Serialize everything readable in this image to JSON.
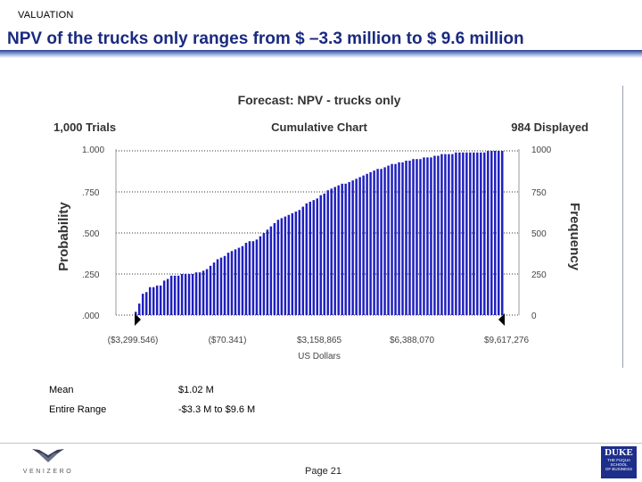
{
  "header": {
    "section_label": "VALUATION",
    "title": "NPV of the trucks only ranges from $ –3.3 million to $ 9.6 million"
  },
  "chart_data": {
    "type": "bar",
    "title": "Forecast: NPV - trucks only",
    "subtitle": "Cumulative Chart",
    "trials_label": "1,000 Trials",
    "displayed_label": "984 Displayed",
    "xlabel": "US Dollars",
    "ylabel_left": "Probability",
    "ylabel_right": "Frequency",
    "left_ticks": [
      ".000",
      ".250",
      ".500",
      ".750",
      "1.000"
    ],
    "right_ticks": [
      "0",
      "250",
      "500",
      "750",
      "1000"
    ],
    "x_ticks": [
      "($3,299.546)",
      "($70.341)",
      "$3,158,865",
      "$6,388,070",
      "$9,617,276"
    ],
    "xlim": [
      -3299546,
      9617276
    ],
    "ylim": [
      0,
      1
    ],
    "grid": true,
    "bar_color": "#1f1fbe",
    "values": [
      0.02,
      0.07,
      0.13,
      0.14,
      0.17,
      0.17,
      0.18,
      0.18,
      0.21,
      0.22,
      0.24,
      0.24,
      0.24,
      0.25,
      0.25,
      0.25,
      0.25,
      0.26,
      0.26,
      0.27,
      0.28,
      0.3,
      0.32,
      0.34,
      0.35,
      0.36,
      0.38,
      0.39,
      0.4,
      0.41,
      0.42,
      0.44,
      0.45,
      0.45,
      0.46,
      0.48,
      0.5,
      0.52,
      0.54,
      0.56,
      0.58,
      0.59,
      0.6,
      0.61,
      0.62,
      0.63,
      0.64,
      0.66,
      0.68,
      0.69,
      0.7,
      0.71,
      0.73,
      0.74,
      0.76,
      0.77,
      0.78,
      0.79,
      0.8,
      0.8,
      0.81,
      0.82,
      0.83,
      0.84,
      0.85,
      0.86,
      0.87,
      0.88,
      0.89,
      0.89,
      0.9,
      0.91,
      0.92,
      0.92,
      0.93,
      0.93,
      0.94,
      0.94,
      0.95,
      0.95,
      0.95,
      0.96,
      0.96,
      0.96,
      0.97,
      0.97,
      0.98,
      0.98,
      0.98,
      0.98,
      0.99,
      0.99,
      0.99,
      0.99,
      0.99,
      0.99,
      0.99,
      0.99,
      0.99,
      1.0,
      1.0,
      1.0,
      1.0,
      1.0
    ]
  },
  "stats": [
    {
      "label": "Mean",
      "value": "$1.02 M"
    },
    {
      "label": "Entire Range",
      "value": "-$3.3 M to $9.6 M"
    }
  ],
  "footer": {
    "left_logo_text": "VENIZERO",
    "page_label": "Page 21",
    "right_logo": {
      "name": "DUKE",
      "line1": "THE FUQUA",
      "line2": "SCHOOL",
      "line3": "OF BUSINESS"
    }
  }
}
